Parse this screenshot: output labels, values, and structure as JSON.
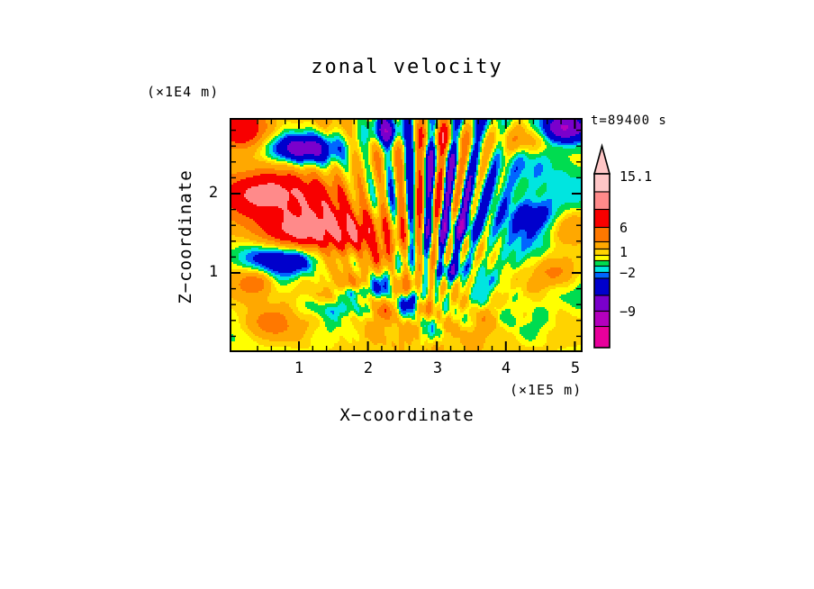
{
  "title": "zonal velocity",
  "time_label": "t=89400 s",
  "axes": {
    "x": {
      "label": "X−coordinate",
      "unit": "(×1E5 m)",
      "tick_labels": [
        "1",
        "2",
        "3",
        "4",
        "5"
      ]
    },
    "y": {
      "label": "Z−coordinate",
      "unit": "(×1E4 m)",
      "tick_labels": [
        "2",
        "1"
      ]
    }
  },
  "colorbar": {
    "tick_labels": [
      "15.1",
      "6",
      "1",
      "−2",
      "−9"
    ],
    "band_colors_top_to_bottom": [
      "#FFC6C6",
      "#FF8A8A",
      "#F80000",
      "#FF7800",
      "#FFA800",
      "#FFD300",
      "#FFFF00",
      "#00DC50",
      "#00E5E0",
      "#0066FF",
      "#0000CC",
      "#7A00CC",
      "#B400BE",
      "#E8009C"
    ],
    "arrow_color": "#FFC6C6",
    "outline_color": "#000000"
  },
  "chart_data": {
    "type": "heatmap",
    "title": "zonal velocity",
    "xlabel": "X-coordinate",
    "x_unit": "(×1E5 m)",
    "x_tick_values": [
      1,
      2,
      3,
      4,
      5
    ],
    "x_range": [
      0,
      5.1
    ],
    "ylabel": "Z-coordinate",
    "y_unit": "(×1E4 m)",
    "y_tick_values": [
      1,
      2
    ],
    "y_range": [
      0,
      2.95
    ],
    "time_annotation": "t=89400 s",
    "colorbar_labeled_levels": [
      15.1,
      6,
      1,
      -2,
      -9
    ],
    "palette_low_to_high": [
      "#E8009C",
      "#B400BE",
      "#7A00CC",
      "#0000CC",
      "#0066FF",
      "#00E5E0",
      "#00DC50",
      "#FFFF00",
      "#FFD300",
      "#FFA800",
      "#FF7800",
      "#F80000",
      "#FF8A8A",
      "#FFC6C6"
    ],
    "legend_position": "right-vertical-arrow-top",
    "grid": false,
    "description": "Filled-contour field of zonal velocity: warm orange/red cells and cold blue/navy cells over a green/yellow background, with fine diagonal wave striations fanning upward in the upper center of the domain."
  }
}
